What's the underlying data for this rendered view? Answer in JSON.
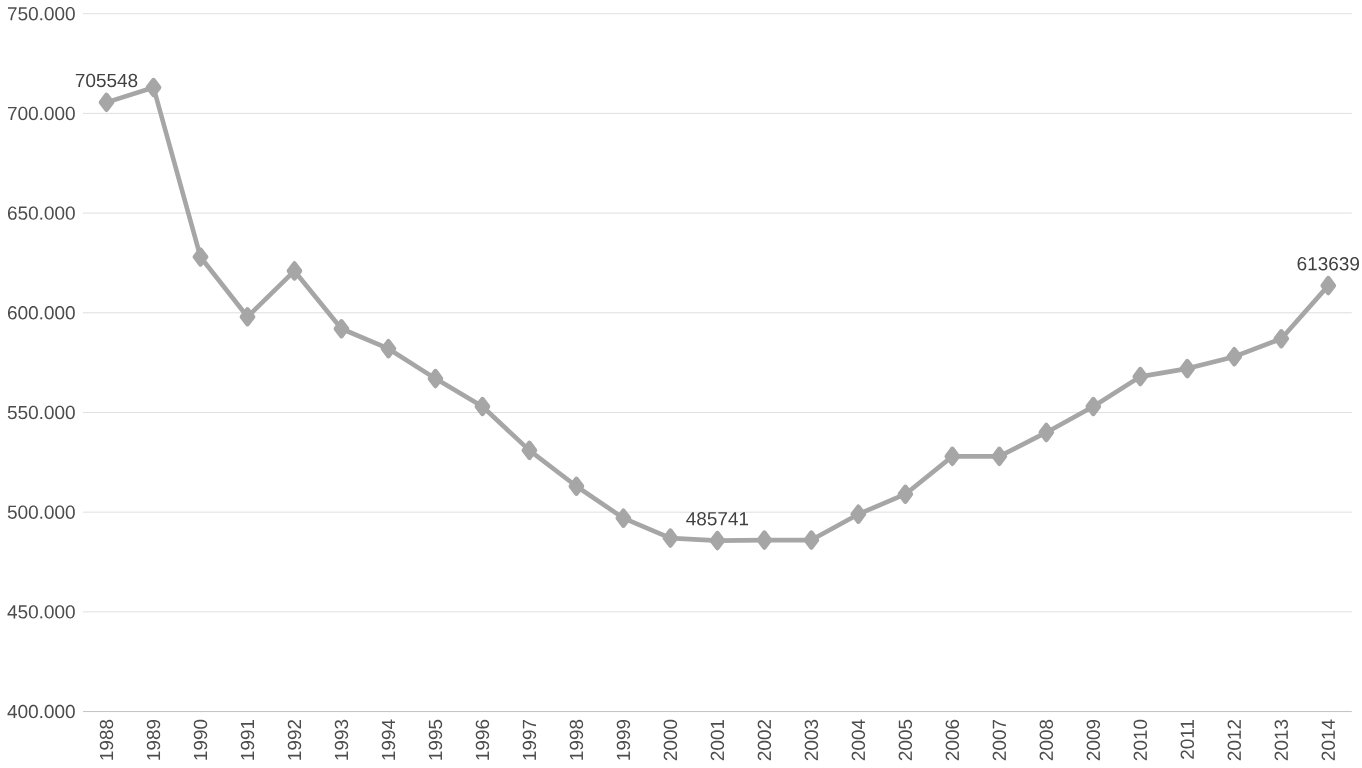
{
  "chart_data": {
    "type": "line",
    "categories": [
      "1988",
      "1989",
      "1990",
      "1991",
      "1992",
      "1993",
      "1994",
      "1995",
      "1996",
      "1997",
      "1998",
      "1999",
      "2000",
      "2001",
      "2002",
      "2003",
      "2004",
      "2005",
      "2006",
      "2007",
      "2008",
      "2009",
      "2010",
      "2011",
      "2012",
      "2013",
      "2014"
    ],
    "series": [
      {
        "color": "#a6a6a6",
        "values": [
          705548,
          713000,
          628000,
          598000,
          621000,
          592000,
          582000,
          567000,
          553000,
          531000,
          513000,
          497000,
          487000,
          485741,
          486000,
          486000,
          499000,
          509000,
          528000,
          528000,
          540000,
          553000,
          568000,
          572000,
          578000,
          587000,
          613639
        ],
        "value_labels": [
          "705548",
          null,
          null,
          null,
          null,
          null,
          null,
          null,
          null,
          null,
          null,
          null,
          null,
          "485741",
          null,
          null,
          null,
          null,
          null,
          null,
          null,
          null,
          null,
          null,
          null,
          null,
          "613639"
        ]
      }
    ],
    "ylim": [
      400000,
      750000
    ],
    "yticks": [
      {
        "value": 400000,
        "label": "400.000"
      },
      {
        "value": 450000,
        "label": "450.000"
      },
      {
        "value": 500000,
        "label": "500.000"
      },
      {
        "value": 550000,
        "label": "550.000"
      },
      {
        "value": 600000,
        "label": "600.000"
      },
      {
        "value": 650000,
        "label": "650.000"
      },
      {
        "value": 700000,
        "label": "700.000"
      },
      {
        "value": 750000,
        "label": "750.000"
      }
    ],
    "grid": "y",
    "marker": "diamond",
    "line_style": "solid"
  }
}
